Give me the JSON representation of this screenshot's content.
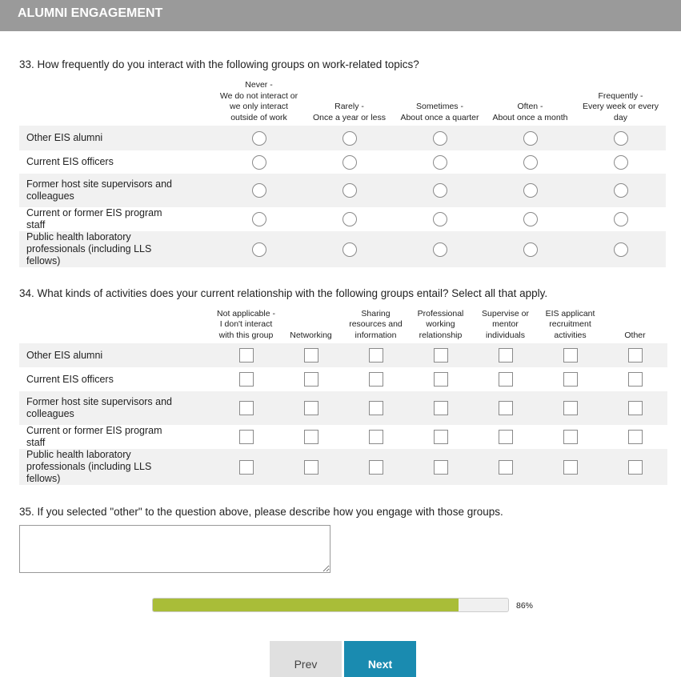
{
  "header": {
    "title": "ALUMNI ENGAGEMENT"
  },
  "q33": {
    "question": "33. How frequently do you interact with the following groups on work-related topics?",
    "columns": [
      [
        "Never -",
        "We do not interact or",
        "we only interact",
        "outside of work"
      ],
      [
        "Rarely -",
        "Once a year or less"
      ],
      [
        "Sometimes -",
        "About once a quarter"
      ],
      [
        "Often -",
        "About once a month"
      ],
      [
        "Frequently -",
        "Every week or every",
        "day"
      ]
    ],
    "rows": [
      "Other EIS alumni",
      "Current EIS officers",
      "Former host site supervisors and colleagues",
      "Current or former EIS program staff",
      "Public health laboratory professionals (including LLS fellows)"
    ]
  },
  "q34": {
    "question": "34. What kinds of activities does your current relationship with the following groups entail? Select all that apply.",
    "columns": [
      [
        "Not applicable -",
        "I don't interact",
        "with this group"
      ],
      [
        "Networking"
      ],
      [
        "Sharing",
        "resources and",
        "information"
      ],
      [
        "Professional",
        "working",
        "relationship"
      ],
      [
        "Supervise or",
        "mentor",
        "individuals"
      ],
      [
        "EIS applicant",
        "recruitment",
        "activities"
      ],
      [
        "Other"
      ]
    ],
    "rows": [
      "Other EIS alumni",
      "Current EIS officers",
      "Former host site supervisors and colleagues",
      "Current or former EIS program staff",
      "Public health laboratory professionals (including LLS fellows)"
    ]
  },
  "q35": {
    "question": "35. If you selected \"other\" to the question above, please describe how you engage with those groups.",
    "value": ""
  },
  "progress": {
    "percent": 86,
    "label": "86%",
    "fill_color": "#a9bd38"
  },
  "nav": {
    "prev": "Prev",
    "next": "Next",
    "next_color": "#1a8bb0"
  }
}
